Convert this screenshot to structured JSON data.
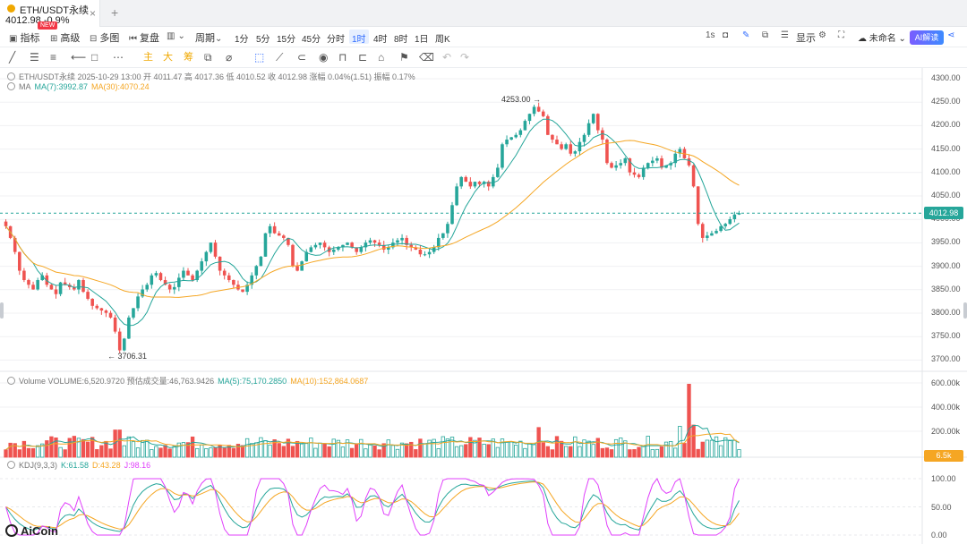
{
  "tab": {
    "symbol": "ETH/USDT永续",
    "price_change": "4012.98 -0.9%",
    "badge": "NEW",
    "close": "×",
    "add": "+"
  },
  "toolbar": {
    "indicators": "指标",
    "advanced": "高级",
    "multi": "多图",
    "replay": "复盘",
    "period": "周期",
    "timeframes": [
      "1分",
      "5分",
      "15分",
      "45分",
      "分时",
      "1时",
      "4时",
      "8时",
      "1日",
      "周K"
    ],
    "active_timeframe": "1时",
    "refresh": "1s",
    "display": "显示",
    "unnamed": "未命名",
    "ai": "AI解读"
  },
  "drawing_tools": {
    "main": "主",
    "big": "大",
    "chip": "筹"
  },
  "legend": {
    "ohlc": "ETH/USDT永续  2025-10-29 13:00  开 4011.47  高 4017.36  低 4010.52  收 4012.98  涨幅 0.04%(1.51)  振幅 0.17%",
    "ma_label": "MA",
    "ma7": "MA(7):3992.87",
    "ma30": "MA(30):4070.24",
    "vol_label": "Volume  VOLUME:6,520.9720  预估成交量:46,763.9426",
    "vol_ma5": "MA(5):75,170.2850",
    "vol_ma10": "MA(10):152,864.0687",
    "kdj_label": "KDJ(9,3,3)",
    "kdj_k": "K:61.58",
    "kdj_d": "D:43.28",
    "kdj_j": "J:98.16"
  },
  "annotations": {
    "high": "4253.00 →",
    "low": "← 3706.31"
  },
  "price_axis": [
    "4300.00",
    "4250.00",
    "4200.00",
    "4150.00",
    "4100.00",
    "4050.00",
    "4000.00",
    "3950.00",
    "3900.00",
    "3850.00",
    "3800.00",
    "3750.00",
    "3700.00"
  ],
  "current_price": "4012.98",
  "volume_axis": [
    "600.00k",
    "400.00k",
    "200.00k"
  ],
  "volume_tag": "6.5k",
  "kdj_axis": [
    "100.00",
    "50.00",
    "0.00"
  ],
  "logo": "AiCoin",
  "colors": {
    "up": "#26a69a",
    "down": "#ef5350",
    "ma7": "#26a69a",
    "ma30": "#f5a623",
    "k": "#26a69a",
    "d": "#f5a623",
    "j": "#e040fb",
    "accent": "#2f6bff"
  },
  "chart_data": {
    "type": "candlestick",
    "interval": "1h",
    "price_range": [
      3690,
      4310
    ],
    "closes": [
      3985,
      3960,
      3930,
      3890,
      3870,
      3860,
      3850,
      3870,
      3880,
      3860,
      3850,
      3840,
      3865,
      3860,
      3855,
      3850,
      3870,
      3845,
      3830,
      3815,
      3810,
      3805,
      3800,
      3790,
      3760,
      3720,
      3745,
      3790,
      3810,
      3835,
      3850,
      3860,
      3880,
      3885,
      3870,
      3860,
      3850,
      3855,
      3875,
      3890,
      3880,
      3870,
      3890,
      3910,
      3930,
      3950,
      3920,
      3890,
      3880,
      3870,
      3860,
      3850,
      3845,
      3860,
      3880,
      3900,
      3920,
      3970,
      3985,
      3970,
      3965,
      3960,
      3945,
      3900,
      3890,
      3910,
      3930,
      3940,
      3945,
      3950,
      3940,
      3930,
      3935,
      3940,
      3945,
      3950,
      3940,
      3930,
      3940,
      3950,
      3955,
      3950,
      3945,
      3935,
      3940,
      3950,
      3955,
      3960,
      3945,
      3940,
      3935,
      3925,
      3925,
      3930,
      3940,
      3960,
      3970,
      3990,
      4030,
      4070,
      4090,
      4080,
      4070,
      4080,
      4075,
      4080,
      4070,
      4090,
      4110,
      4160,
      4170,
      4175,
      4180,
      4190,
      4210,
      4225,
      4240,
      4230,
      4220,
      4180,
      4170,
      4160,
      4150,
      4160,
      4140,
      4145,
      4165,
      4180,
      4205,
      4225,
      4190,
      4170,
      4120,
      4110,
      4115,
      4120,
      4130,
      4100,
      4095,
      4090,
      4110,
      4120,
      4125,
      4130,
      4110,
      4115,
      4120,
      4140,
      4150,
      4130,
      4115,
      4070,
      3990,
      3960,
      3965,
      3970,
      3975,
      3985,
      3990,
      4000,
      4010,
      4013
    ],
    "volume_range": [
      0,
      650000
    ],
    "kdj_range": [
      0,
      105
    ]
  }
}
